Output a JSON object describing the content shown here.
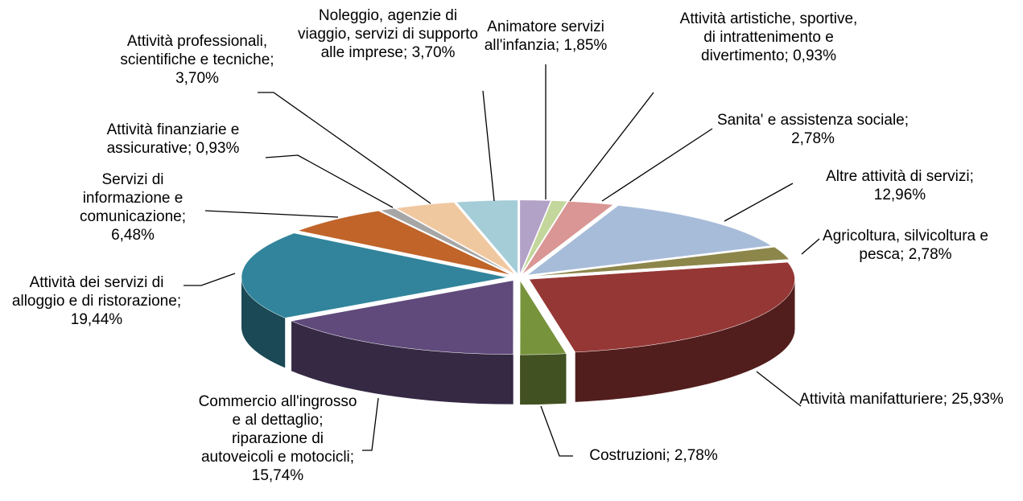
{
  "chart_data": {
    "type": "pie3d",
    "categories": [
      "Animatore servizi all'infanzia",
      "Attività artistiche, sportive, di intrattenimento e divertimento",
      "Sanita' e assistenza sociale",
      "Altre attività di servizi",
      "Agricoltura, silvicoltura e pesca",
      "Attività manifatturiere",
      "Costruzioni",
      "Commercio all'ingrosso e al dettaglio; riparazione di autoveicoli e motocicli",
      "Attività dei servizi di alloggio e di ristorazione",
      "Servizi di informazione e comunicazione",
      "Attività finanziarie e assicurative",
      "Attività professionali, scientifiche e tecniche",
      "Noleggio, agenzie di viaggio, servizi di supporto alle imprese"
    ],
    "values": [
      1.85,
      0.93,
      2.78,
      12.96,
      2.78,
      25.93,
      2.78,
      15.74,
      19.44,
      6.48,
      0.93,
      3.7,
      3.7
    ],
    "value_labels": [
      "1,85%",
      "0,93%",
      "2,78%",
      "12,96%",
      "2,78%",
      "25,93%",
      "2,78%",
      "15,74%",
      "19,44%",
      "6,48%",
      "0,93%",
      "3,70%",
      "3,70%"
    ],
    "colors": [
      "#b3a2c7",
      "#c3d69b",
      "#d99694",
      "#a7bcd9",
      "#8c864a",
      "#953735",
      "#77933c",
      "#604a7b",
      "#31849b",
      "#c0642a",
      "#a6a6a6",
      "#f0c8a0",
      "#a5cdd8"
    ]
  }
}
